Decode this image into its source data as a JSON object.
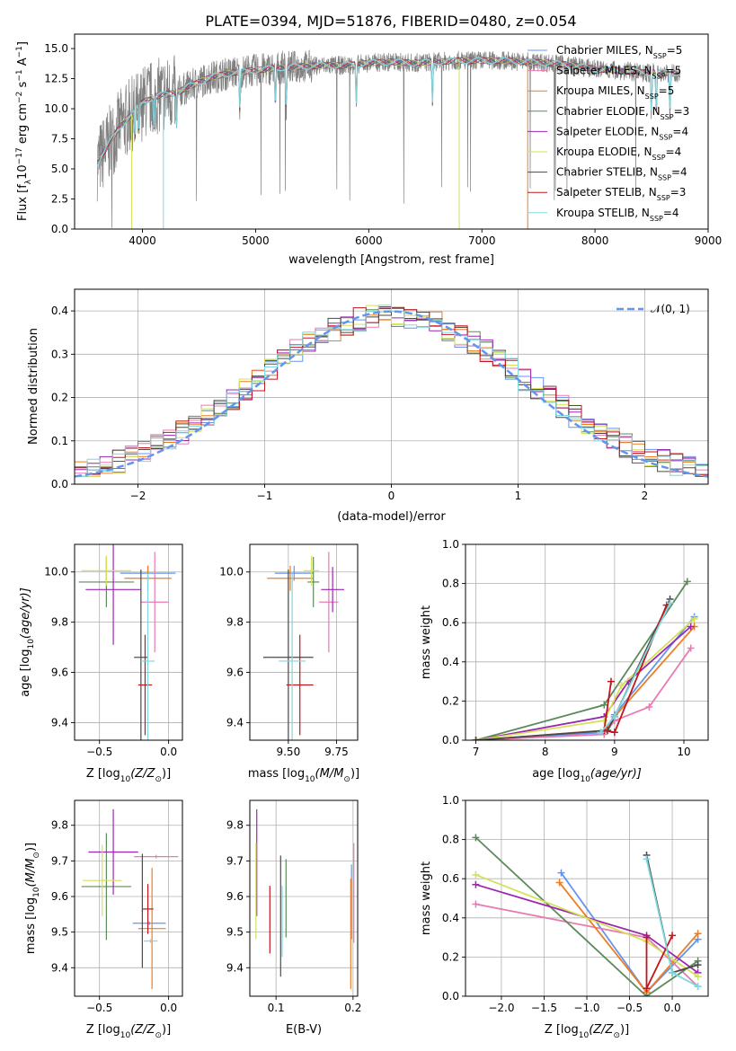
{
  "figure": {
    "title": "PLATE=0394, MJD=51876, FIBERID=0480, z=0.054"
  },
  "models": [
    {
      "name": "Chabrier MILES, N",
      "nssp": "5",
      "color": "#6495ed"
    },
    {
      "name": "Salpeter MILES, N",
      "nssp": "5",
      "color": "#e87ab2"
    },
    {
      "name": "Kroupa MILES, N",
      "nssp": "5",
      "color": "#ee7d22"
    },
    {
      "name": "Chabrier ELODIE, N",
      "nssp": "3",
      "color": "#5c8a5c"
    },
    {
      "name": "Salpeter ELODIE, N",
      "nssp": "4",
      "color": "#9b27b0"
    },
    {
      "name": "Kroupa ELODIE, N",
      "nssp": "4",
      "color": "#d4e157"
    },
    {
      "name": "Chabrier STELIB, N",
      "nssp": "4",
      "color": "#4a4a4a"
    },
    {
      "name": "Salpeter STELIB, N",
      "nssp": "3",
      "color": "#c0161c"
    },
    {
      "name": "Kroupa STELIB, N",
      "nssp": "4",
      "color": "#7fd7e0"
    }
  ],
  "ssp_label": "SSP",
  "chart_data": [
    {
      "id": "spectrum",
      "type": "line",
      "xlabel": "wavelength [Angstrom, rest frame]",
      "ylabel": "Flux [f",
      "xlim": [
        3400,
        9000
      ],
      "ylim": [
        0,
        16.2
      ],
      "xticks": [
        4000,
        5000,
        6000,
        7000,
        8000,
        9000
      ],
      "yticks": [
        0.0,
        2.5,
        5.0,
        7.5,
        10.0,
        12.5,
        15.0
      ],
      "data_color": "#808080",
      "data_x_range": [
        3600,
        8750
      ],
      "envelope": {
        "x": [
          3600,
          3700,
          3800,
          3900,
          4000,
          4100,
          4200,
          4300,
          4400,
          4500,
          4600,
          4800,
          5000,
          5200,
          5400,
          5600,
          5800,
          6000,
          6200,
          6400,
          6600,
          6800,
          7000,
          7200,
          7400,
          7600,
          7800,
          8000,
          8200,
          8400,
          8600,
          8750
        ],
        "y": [
          5.5,
          7.0,
          8.5,
          9.5,
          10.5,
          11.0,
          11.2,
          11.3,
          11.8,
          12.2,
          12.6,
          13.0,
          13.2,
          13.4,
          13.5,
          13.6,
          13.6,
          13.8,
          13.9,
          13.8,
          13.9,
          14.0,
          14.0,
          14.0,
          13.9,
          13.8,
          13.6,
          13.3,
          13.2,
          13.0,
          13.0,
          13.0
        ]
      },
      "absorption_lines": [
        3934,
        3969,
        4102,
        4300,
        4861,
        5175,
        5270,
        5890,
        6563,
        8498,
        8542,
        8662
      ],
      "legend": "upper-right"
    },
    {
      "id": "residuals",
      "type": "step",
      "xlabel": "(data-model)/error",
      "ylabel": "Normed distribution",
      "xlim": [
        -2.5,
        2.5
      ],
      "ylim": [
        0,
        0.45
      ],
      "xticks": [
        -2,
        -1,
        0,
        1,
        2
      ],
      "yticks": [
        0.0,
        0.1,
        0.2,
        0.3,
        0.4
      ],
      "bin_width": 0.1,
      "bin_start": -2.5,
      "normal_label": "𝒩(0, 1)",
      "normal_color": "#6495ed",
      "grid": true
    },
    {
      "id": "age_vs_Z",
      "type": "errorbar",
      "xlabel": "Z [log",
      "xlabel_tail": "(Z/Z",
      "ylabel": "age  [log",
      "ylabel_tail": "(age/yr)]",
      "xlim": [
        -0.68,
        0.1
      ],
      "ylim": [
        9.33,
        10.11
      ],
      "xticks": [
        -0.5,
        0.0
      ],
      "yticks": [
        9.4,
        9.6,
        9.8,
        10.0
      ],
      "points": [
        {
          "x": -0.15,
          "y": 9.995,
          "xerr": 0.2,
          "yerr": 0.03,
          "c": 0
        },
        {
          "x": -0.1,
          "y": 9.88,
          "xerr": 0.1,
          "yerr": 0.2,
          "c": 1
        },
        {
          "x": -0.15,
          "y": 9.975,
          "xerr": 0.17,
          "yerr": 0.05,
          "c": 2
        },
        {
          "x": -0.45,
          "y": 9.96,
          "xerr": 0.2,
          "yerr": 0.1,
          "c": 3
        },
        {
          "x": -0.4,
          "y": 9.93,
          "xerr": 0.2,
          "yerr": 0.22,
          "c": 4
        },
        {
          "x": -0.45,
          "y": 10.005,
          "xerr": 0.18,
          "yerr": 0.06,
          "c": 5
        },
        {
          "x": -0.2,
          "y": 9.66,
          "xerr": 0.05,
          "yerr": 0.35,
          "c": 6
        },
        {
          "x": -0.17,
          "y": 9.55,
          "xerr": 0.05,
          "yerr": 0.2,
          "c": 7
        },
        {
          "x": -0.15,
          "y": 9.645,
          "xerr": 0.05,
          "yerr": 0.35,
          "c": 8
        }
      ],
      "grid": true
    },
    {
      "id": "age_vs_mass",
      "type": "errorbar",
      "xlabel": "mass [log",
      "xlabel_tail": "(M/M",
      "ylabel": "",
      "xlim": [
        9.3,
        9.86
      ],
      "ylim": [
        9.33,
        10.11
      ],
      "xticks": [
        9.5,
        9.75
      ],
      "yticks": [
        9.4,
        9.6,
        9.8,
        10.0
      ],
      "points": [
        {
          "x": 9.53,
          "y": 9.995,
          "xerr": 0.1,
          "yerr": 0.03,
          "c": 0
        },
        {
          "x": 9.71,
          "y": 9.88,
          "xerr": 0.05,
          "yerr": 0.2,
          "c": 1
        },
        {
          "x": 9.51,
          "y": 9.975,
          "xerr": 0.12,
          "yerr": 0.05,
          "c": 2
        },
        {
          "x": 9.63,
          "y": 9.96,
          "xerr": 0.03,
          "yerr": 0.1,
          "c": 3
        },
        {
          "x": 9.73,
          "y": 9.93,
          "xerr": 0.06,
          "yerr": 0.09,
          "c": 4
        },
        {
          "x": 9.62,
          "y": 10.005,
          "xerr": 0.04,
          "yerr": 0.06,
          "c": 5
        },
        {
          "x": 9.5,
          "y": 9.66,
          "xerr": 0.13,
          "yerr": 0.35,
          "c": 6
        },
        {
          "x": 9.56,
          "y": 9.55,
          "xerr": 0.07,
          "yerr": 0.2,
          "c": 7
        },
        {
          "x": 9.52,
          "y": 9.645,
          "xerr": 0.07,
          "yerr": 0.35,
          "c": 8
        }
      ],
      "grid": true
    },
    {
      "id": "weight_vs_age",
      "type": "line",
      "xlabel": "age  [log",
      "xlabel_tail": "(age/yr)]",
      "ylabel": "mass weight",
      "xlim": [
        6.85,
        10.35
      ],
      "ylim": [
        0,
        1.0
      ],
      "xticks": [
        7,
        8,
        9,
        10
      ],
      "yticks": [
        0.0,
        0.2,
        0.4,
        0.6,
        0.8,
        1.0
      ],
      "series": [
        {
          "c": 0,
          "x": [
            7.0,
            8.85,
            9.0,
            10.15
          ],
          "y": [
            0.0,
            0.04,
            0.13,
            0.63
          ]
        },
        {
          "c": 1,
          "x": [
            7.0,
            8.85,
            9.0,
            9.5,
            10.1
          ],
          "y": [
            0.0,
            0.03,
            0.1,
            0.17,
            0.47
          ]
        },
        {
          "c": 2,
          "x": [
            7.0,
            8.85,
            9.0,
            10.15
          ],
          "y": [
            0.0,
            0.05,
            0.12,
            0.58
          ]
        },
        {
          "c": 3,
          "x": [
            7.0,
            8.85,
            10.05
          ],
          "y": [
            0.0,
            0.18,
            0.81
          ]
        },
        {
          "c": 4,
          "x": [
            7.0,
            8.85,
            9.2,
            10.1
          ],
          "y": [
            0.0,
            0.12,
            0.3,
            0.58
          ]
        },
        {
          "c": 5,
          "x": [
            7.0,
            8.85,
            9.1,
            10.15
          ],
          "y": [
            0.0,
            0.1,
            0.28,
            0.62
          ]
        },
        {
          "c": 6,
          "x": [
            7.0,
            8.9,
            9.0,
            9.8
          ],
          "y": [
            0.0,
            0.05,
            0.12,
            0.72
          ]
        },
        {
          "c": 7,
          "x": [
            8.95,
            8.85,
            9.0,
            9.75
          ],
          "y": [
            0.3,
            0.05,
            0.04,
            0.69
          ]
        },
        {
          "c": 8,
          "x": [
            8.8,
            9.0,
            9.8
          ],
          "y": [
            0.04,
            0.12,
            0.7
          ]
        }
      ],
      "grid": true
    },
    {
      "id": "mass_vs_Z",
      "type": "errorbar",
      "xlabel": "Z [log",
      "xlabel_tail": "(Z/Z",
      "ylabel": "mass [log",
      "ylabel_tail": "(M/M",
      "xlim": [
        -0.68,
        0.1
      ],
      "ylim": [
        9.32,
        9.87
      ],
      "xticks": [
        -0.5,
        0.0
      ],
      "yticks": [
        9.4,
        9.5,
        9.6,
        9.7,
        9.8
      ],
      "points": [
        {
          "x": -0.14,
          "y": 9.525,
          "xerr": 0.12,
          "yerr": 0.005,
          "c": 0
        },
        {
          "x": -0.09,
          "y": 9.712,
          "xerr": 0.16,
          "yerr": 0.005,
          "c": 1
        },
        {
          "x": -0.12,
          "y": 9.51,
          "xerr": 0.1,
          "yerr": 0.17,
          "c": 2
        },
        {
          "x": -0.45,
          "y": 9.628,
          "xerr": 0.18,
          "yerr": 0.15,
          "c": 3
        },
        {
          "x": -0.4,
          "y": 9.725,
          "xerr": 0.18,
          "yerr": 0.12,
          "c": 4
        },
        {
          "x": -0.48,
          "y": 9.645,
          "xerr": 0.14,
          "yerr": 0.1,
          "c": 5
        },
        {
          "x": -0.19,
          "y": 9.56,
          "xerr": 0.005,
          "yerr": 0.16,
          "c": 6
        },
        {
          "x": -0.15,
          "y": 9.565,
          "xerr": 0.04,
          "yerr": 0.07,
          "c": 7
        },
        {
          "x": -0.13,
          "y": 9.475,
          "xerr": 0.05,
          "yerr": 0.005,
          "c": 8
        }
      ],
      "grid": true
    },
    {
      "id": "mass_vs_EBV",
      "type": "errorbar",
      "xlabel": "E(B-V)",
      "ylabel": "",
      "xlim": [
        0.066,
        0.206
      ],
      "ylim": [
        9.32,
        9.87
      ],
      "xticks": [
        0.1,
        0.2
      ],
      "yticks": [
        9.4,
        9.5,
        9.6,
        9.7,
        9.8
      ],
      "points": [
        {
          "x": 0.198,
          "y": 9.585,
          "xerr": 0,
          "yerr": 0.105,
          "c": 0
        },
        {
          "x": 0.201,
          "y": 9.61,
          "xerr": 0,
          "yerr": 0.14,
          "c": 1
        },
        {
          "x": 0.197,
          "y": 9.495,
          "xerr": 0,
          "yerr": 0.155,
          "c": 2
        },
        {
          "x": 0.113,
          "y": 9.595,
          "xerr": 0,
          "yerr": 0.11,
          "c": 3
        },
        {
          "x": 0.075,
          "y": 9.695,
          "xerr": 0,
          "yerr": 0.15,
          "c": 4
        },
        {
          "x": 0.074,
          "y": 9.615,
          "xerr": 0,
          "yerr": 0.135,
          "c": 5
        },
        {
          "x": 0.106,
          "y": 9.545,
          "xerr": 0,
          "yerr": 0.17,
          "c": 6
        },
        {
          "x": 0.092,
          "y": 9.535,
          "xerr": 0,
          "yerr": 0.095,
          "c": 7
        },
        {
          "x": 0.108,
          "y": 9.53,
          "xerr": 0,
          "yerr": 0.1,
          "c": 8
        }
      ],
      "grid": true
    },
    {
      "id": "weight_vs_Z",
      "type": "line",
      "xlabel": "Z [log",
      "xlabel_tail": "(Z/Z",
      "ylabel": "mass weight",
      "xlim": [
        -2.42,
        0.42
      ],
      "ylim": [
        0,
        1.0
      ],
      "xticks": [
        -2.0,
        -1.5,
        -1.0,
        -0.5,
        0.0
      ],
      "yticks": [
        0.0,
        0.2,
        0.4,
        0.6,
        0.8,
        1.0
      ],
      "series": [
        {
          "c": 0,
          "x": [
            -1.3,
            -0.3,
            0.3
          ],
          "y": [
            0.63,
            0.02,
            0.29
          ]
        },
        {
          "c": 1,
          "x": [
            -2.3,
            -0.3,
            0.3
          ],
          "y": [
            0.47,
            0.3,
            0.05
          ]
        },
        {
          "c": 2,
          "x": [
            -1.32,
            -0.3,
            0.3
          ],
          "y": [
            0.58,
            0.02,
            0.32
          ]
        },
        {
          "c": 3,
          "x": [
            -2.3,
            -0.3,
            0.3
          ],
          "y": [
            0.81,
            0.0,
            0.18
          ]
        },
        {
          "c": 4,
          "x": [
            -2.3,
            -0.3,
            0.3
          ],
          "y": [
            0.57,
            0.31,
            0.12
          ]
        },
        {
          "c": 5,
          "x": [
            -2.3,
            -0.3,
            0.3
          ],
          "y": [
            0.62,
            0.28,
            0.1
          ]
        },
        {
          "c": 6,
          "x": [
            -0.3,
            0.0,
            0.3
          ],
          "y": [
            0.72,
            0.12,
            0.16
          ]
        },
        {
          "c": 7,
          "x": [
            -0.3,
            -0.3,
            0.0
          ],
          "y": [
            0.3,
            0.04,
            0.31
          ]
        },
        {
          "c": 8,
          "x": [
            -0.3,
            0.0,
            0.3
          ],
          "y": [
            0.7,
            0.12,
            0.05
          ]
        }
      ],
      "grid": true
    }
  ]
}
